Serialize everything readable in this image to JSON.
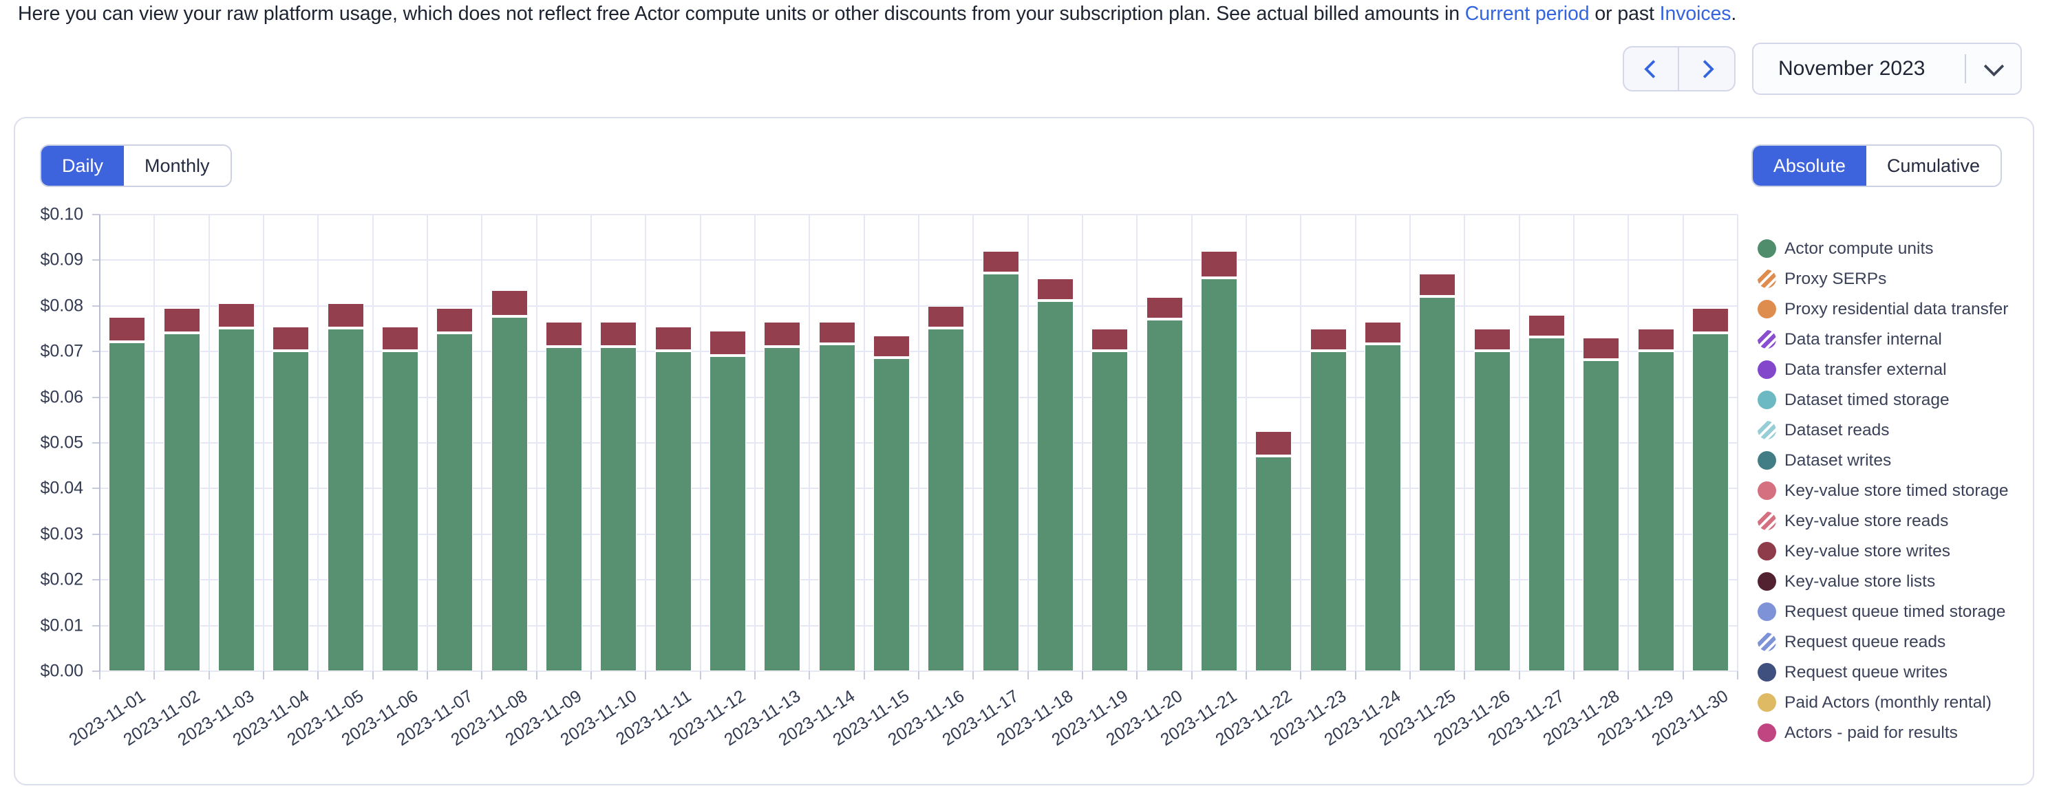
{
  "header": {
    "description": {
      "text_before": "Here you can view your raw platform usage, which does not reflect free Actor compute units or other discounts from your subscription plan. See actual billed amounts in ",
      "link_current_period": "Current period",
      "text_middle": " or past ",
      "link_invoices": "Invoices",
      "text_after": "."
    },
    "period_selector": {
      "selected": "November 2023"
    }
  },
  "card": {
    "granularity_toggle": {
      "options": [
        "Daily",
        "Monthly"
      ],
      "selected": "Daily"
    },
    "mode_toggle": {
      "options": [
        "Absolute",
        "Cumulative"
      ],
      "selected": "Absolute"
    }
  },
  "colors": {
    "accent_blue": "#3d63dd",
    "link_blue": "#3465e0",
    "bar_green": "#589172",
    "bar_dark_red": "#943f4d",
    "gridline": "#e5e8f4"
  },
  "chart_data": {
    "type": "bar",
    "stacked": true,
    "title": "",
    "xlabel": "",
    "ylabel": "",
    "ylim": [
      0,
      0.1
    ],
    "ytick_step": 0.01,
    "grid": true,
    "legend_position": "right",
    "yticks": [
      "$0.00",
      "$0.01",
      "$0.02",
      "$0.03",
      "$0.04",
      "$0.05",
      "$0.06",
      "$0.07",
      "$0.08",
      "$0.09",
      "$0.10"
    ],
    "x": [
      "2023-11-01",
      "2023-11-02",
      "2023-11-03",
      "2023-11-04",
      "2023-11-05",
      "2023-11-06",
      "2023-11-07",
      "2023-11-08",
      "2023-11-09",
      "2023-11-10",
      "2023-11-11",
      "2023-11-12",
      "2023-11-13",
      "2023-11-14",
      "2023-11-15",
      "2023-11-16",
      "2023-11-17",
      "2023-11-18",
      "2023-11-19",
      "2023-11-20",
      "2023-11-21",
      "2023-11-22",
      "2023-11-23",
      "2023-11-24",
      "2023-11-25",
      "2023-11-26",
      "2023-11-27",
      "2023-11-28",
      "2023-11-29",
      "2023-11-30"
    ],
    "series": [
      {
        "name": "Actor compute units",
        "color": "#589172",
        "values": [
          0.072,
          0.074,
          0.075,
          0.07,
          0.075,
          0.07,
          0.074,
          0.0775,
          0.071,
          0.071,
          0.07,
          0.069,
          0.071,
          0.0715,
          0.0685,
          0.075,
          0.087,
          0.081,
          0.07,
          0.077,
          0.086,
          0.047,
          0.07,
          0.0715,
          0.082,
          0.07,
          0.073,
          0.068,
          0.07,
          0.074
        ]
      },
      {
        "name": "Key-value store writes",
        "color": "#943f4d",
        "values": [
          0.0055,
          0.0055,
          0.0055,
          0.0055,
          0.0055,
          0.0055,
          0.0055,
          0.006,
          0.0055,
          0.0055,
          0.0055,
          0.0055,
          0.0055,
          0.005,
          0.005,
          0.005,
          0.005,
          0.005,
          0.005,
          0.005,
          0.006,
          0.0055,
          0.005,
          0.005,
          0.005,
          0.005,
          0.005,
          0.005,
          0.005,
          0.0055
        ]
      }
    ],
    "legend": [
      {
        "name": "Actor compute units",
        "color": "#4f8d6c",
        "striped": false
      },
      {
        "name": "Proxy SERPs",
        "color": "#df8c4f",
        "striped": true
      },
      {
        "name": "Proxy residential data transfer",
        "color": "#df8c4f",
        "striped": false
      },
      {
        "name": "Data transfer internal",
        "color": "#8a4ed0",
        "striped": true
      },
      {
        "name": "Data transfer external",
        "color": "#8347cb",
        "striped": false
      },
      {
        "name": "Dataset timed storage",
        "color": "#6db9c3",
        "striped": false
      },
      {
        "name": "Dataset reads",
        "color": "#97ced6",
        "striped": true
      },
      {
        "name": "Dataset writes",
        "color": "#427d85",
        "striped": false
      },
      {
        "name": "Key-value store timed storage",
        "color": "#d4707f",
        "striped": false
      },
      {
        "name": "Key-value store reads",
        "color": "#d4707f",
        "striped": true
      },
      {
        "name": "Key-value store writes",
        "color": "#8e3b4a",
        "striped": false
      },
      {
        "name": "Key-value store lists",
        "color": "#522230",
        "striped": false
      },
      {
        "name": "Request queue timed storage",
        "color": "#7e92d8",
        "striped": false
      },
      {
        "name": "Request queue reads",
        "color": "#7e92d8",
        "striped": true
      },
      {
        "name": "Request queue writes",
        "color": "#40507e",
        "striped": false
      },
      {
        "name": "Paid Actors (monthly rental)",
        "color": "#deba64",
        "striped": false
      },
      {
        "name": "Actors - paid for results",
        "color": "#c04581",
        "striped": false
      }
    ]
  }
}
